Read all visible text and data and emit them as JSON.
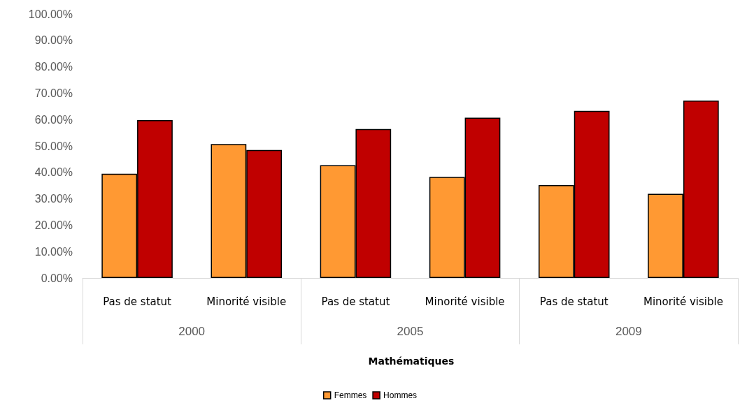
{
  "chart_data": {
    "type": "bar",
    "categories": [
      "Pas de statut",
      "Minorité visible",
      "Pas de statut",
      "Minorité visible",
      "Pas de statut",
      "Minorité visible"
    ],
    "annotations": [
      "2000",
      "2005",
      "2009",
      "Mathématiques"
    ],
    "series": [
      {
        "name": "Femmes",
        "color": "#ff9933",
        "values": [
          39.5,
          50.7,
          42.7,
          38.3,
          35.2,
          31.9
        ]
      },
      {
        "name": "Hommes",
        "color": "#c00000",
        "values": [
          59.8,
          48.5,
          56.4,
          60.7,
          63.3,
          67.2
        ]
      }
    ],
    "ylim": [
      0,
      100
    ],
    "yticks": [
      {
        "value": 0,
        "label": "0.00%"
      },
      {
        "value": 10,
        "label": "10.00%"
      },
      {
        "value": 20,
        "label": "20.00%"
      },
      {
        "value": 30,
        "label": "30.00%"
      },
      {
        "value": 40,
        "label": "40.00%"
      },
      {
        "value": 50,
        "label": "50.00%"
      },
      {
        "value": 60,
        "label": "60.00%"
      },
      {
        "value": 70,
        "label": "70.00%"
      },
      {
        "value": 80,
        "label": "80.00%"
      },
      {
        "value": 90,
        "label": "90.00%"
      },
      {
        "value": 100,
        "label": "100.00%"
      }
    ],
    "grid": false,
    "legend": "bottom"
  }
}
